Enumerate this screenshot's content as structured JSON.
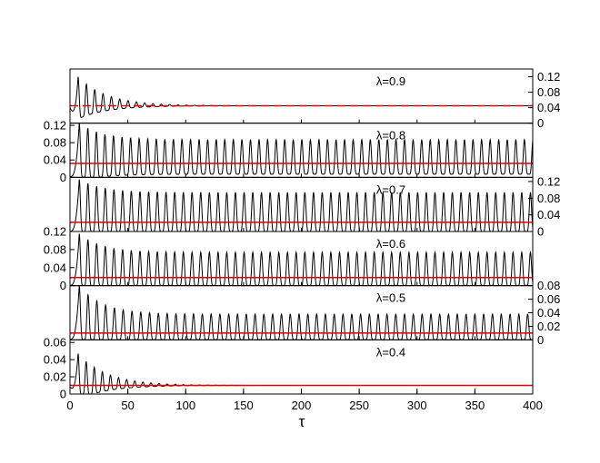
{
  "figure": {
    "xlabel": "τ",
    "colors": {
      "oscillation": "#000000",
      "mean": "#e00000",
      "frame": "#000000"
    }
  },
  "chart_data": {
    "type": "line",
    "xlabel": "τ",
    "ylabel": "",
    "xlim": [
      0,
      400
    ],
    "xticks": [
      0,
      50,
      100,
      150,
      200,
      250,
      300,
      350,
      400
    ],
    "panels": [
      {
        "label": "λ=0.9",
        "ylim": [
          0,
          0.14
        ],
        "yticks": [
          0,
          0.04,
          0.08,
          0.12
        ],
        "tick_side": "right",
        "mean": 0.045,
        "mean_style": "dashed",
        "period": 7.2,
        "first_peak_tau": 7,
        "first_peak": 0.12,
        "peak_amplitude": 0.09,
        "decay_tau": 25,
        "decay_floor": 0.0,
        "trough": 0.04
      },
      {
        "label": "λ=0.8",
        "ylim": [
          0,
          0.125
        ],
        "yticks": [
          0,
          0.04,
          0.08,
          0.12
        ],
        "tick_side": "left",
        "mean": 0.032,
        "mean_style": "solid",
        "period": 7.4,
        "first_peak_tau": 8,
        "first_peak": 0.125,
        "peak_amplitude": 0.06,
        "decay_tau": 20,
        "decay_floor": 0.055,
        "trough": 0.002
      },
      {
        "label": "λ=0.7",
        "ylim": [
          0,
          0.13
        ],
        "yticks": [
          0,
          0.04,
          0.08,
          0.12
        ],
        "tick_side": "right",
        "mean": 0.022,
        "mean_style": "solid",
        "period": 7.5,
        "first_peak_tau": 8,
        "first_peak": 0.125,
        "peak_amplitude": 0.08,
        "decay_tau": 20,
        "decay_floor": 0.072,
        "trough": 0.001
      },
      {
        "label": "λ=0.6",
        "ylim": [
          0,
          0.12
        ],
        "yticks": [
          0,
          0.04,
          0.08,
          0.12
        ],
        "tick_side": "left",
        "mean": 0.018,
        "mean_style": "solid",
        "period": 7.5,
        "first_peak_tau": 8,
        "first_peak": 0.115,
        "peak_amplitude": 0.07,
        "decay_tau": 20,
        "decay_floor": 0.056,
        "trough": 0.001
      },
      {
        "label": "λ=0.5",
        "ylim": [
          0,
          0.08
        ],
        "yticks": [
          0,
          0.02,
          0.04,
          0.06,
          0.08
        ],
        "tick_side": "right",
        "mean": 0.01,
        "mean_style": "solid",
        "period": 7.6,
        "first_peak_tau": 8,
        "first_peak": 0.08,
        "peak_amplitude": 0.048,
        "decay_tau": 20,
        "decay_floor": 0.028,
        "trough": 0.001
      },
      {
        "label": "λ=0.4",
        "ylim": [
          0,
          0.063
        ],
        "yticks": [
          0,
          0.02,
          0.04,
          0.06
        ],
        "tick_side": "left",
        "mean": 0.01,
        "mean_style": "solid",
        "period": 7.0,
        "first_peak_tau": 7,
        "first_peak": 0.047,
        "peak_amplitude": 0.038,
        "decay_tau": 25,
        "decay_floor": 0.0,
        "trough": 0.008
      }
    ]
  }
}
